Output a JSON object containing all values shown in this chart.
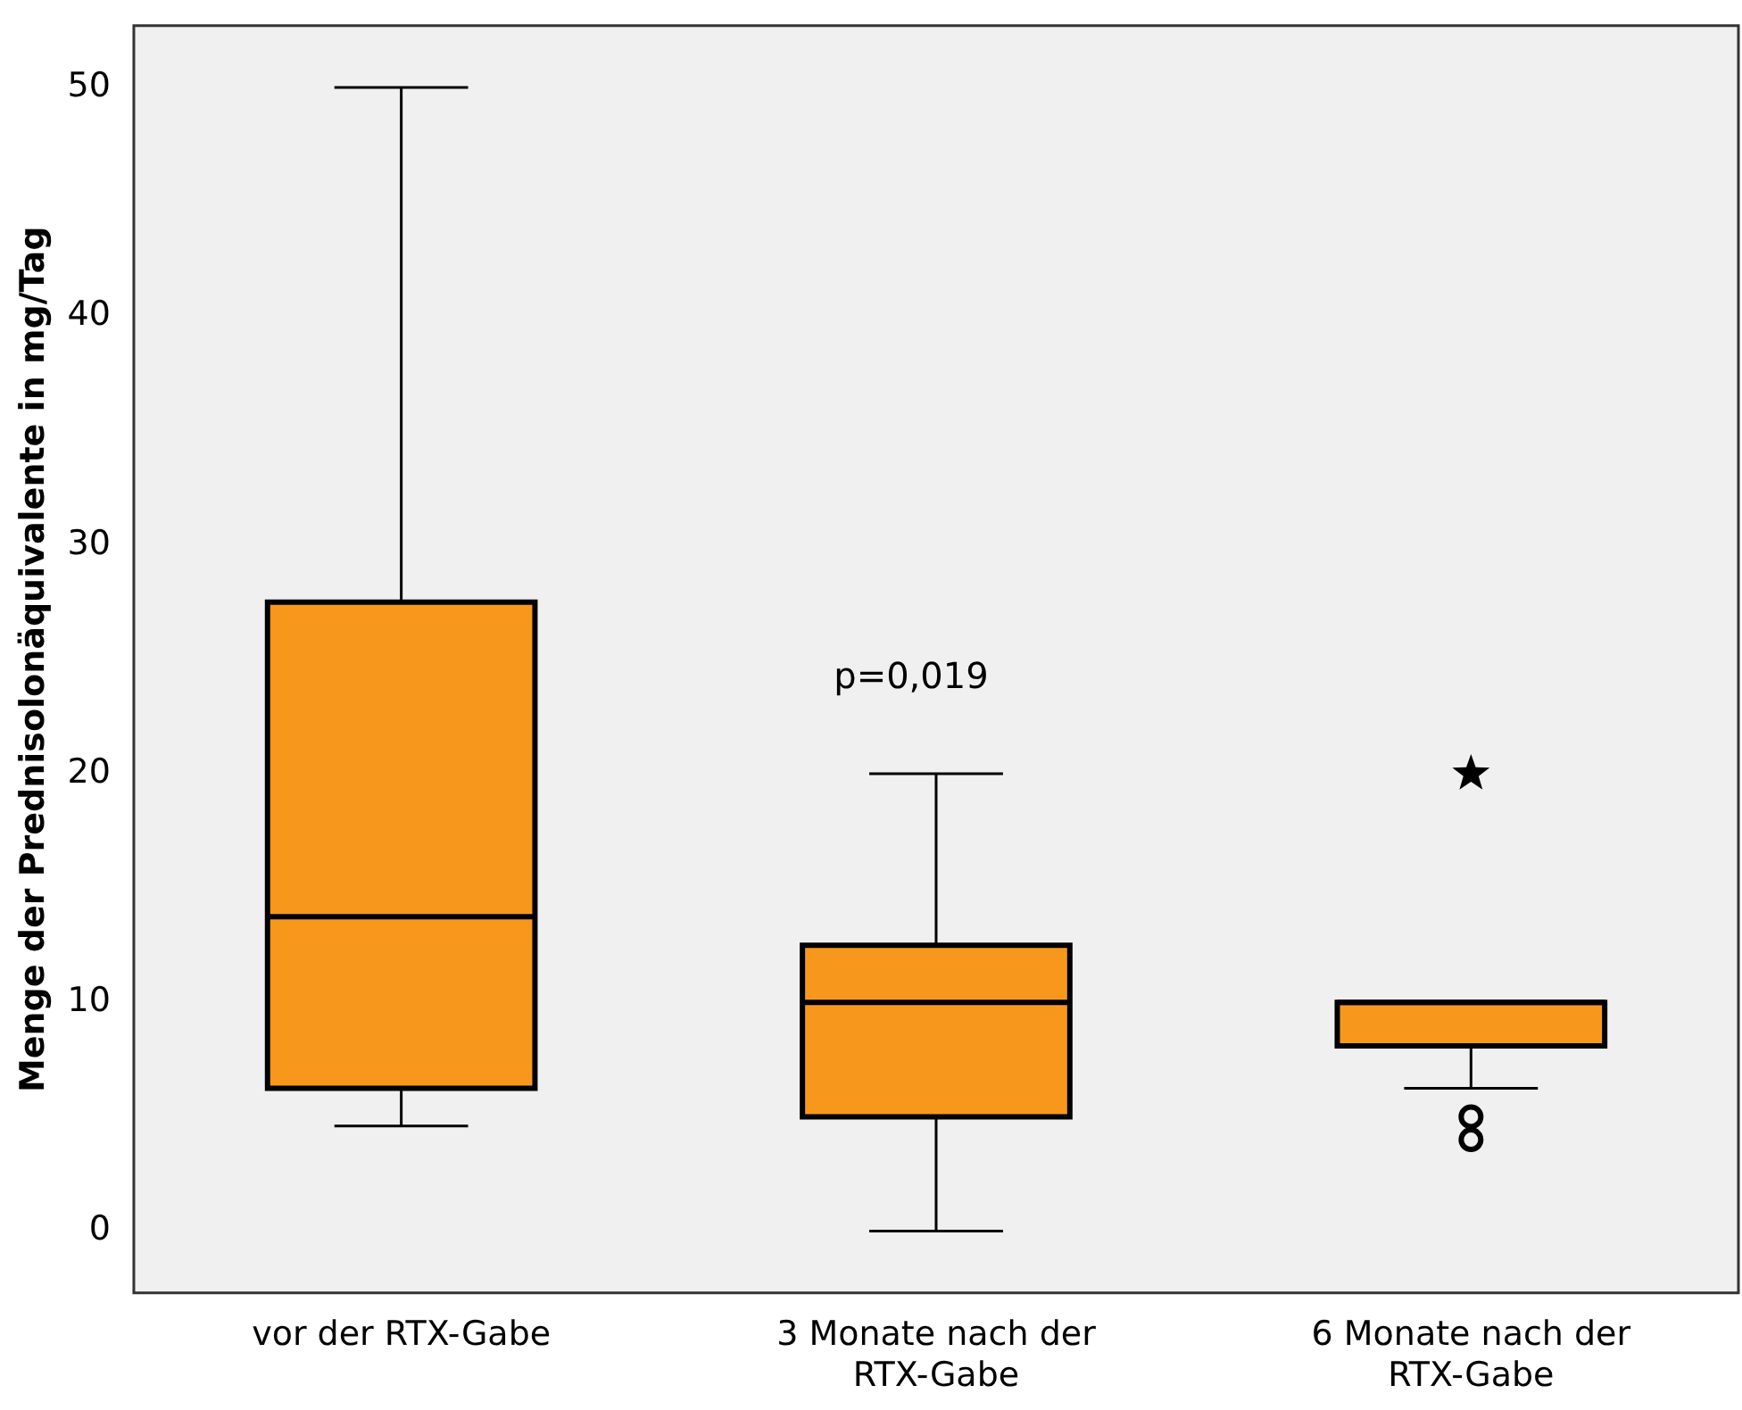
{
  "chart_data": {
    "type": "box",
    "ylabel": "Menge der Prednisolonäquivalente in mg/Tag",
    "categories": [
      "vor der RTX-Gabe",
      "3 Monate nach der RTX-Gabe",
      "6 Monate nach der RTX-Gabe"
    ],
    "boxes": [
      {
        "low": 4.6,
        "q1": 6.25,
        "median": 13.75,
        "q3": 27.5,
        "high": 50
      },
      {
        "low": 0,
        "q1": 5,
        "median": 10,
        "q3": 12.5,
        "high": 20
      },
      {
        "low": 6.25,
        "q1": 8.1,
        "median": 10,
        "q3": 10,
        "high": 10,
        "outliers": [
          5,
          4
        ]
      }
    ],
    "series": [
      {
        "type": "scatter",
        "marker": "star",
        "color": "#000000",
        "x": [
          "6 Monate nach der RTX-Gabe"
        ],
        "values": [
          20
        ]
      }
    ],
    "color": "#f7981d",
    "ylim": [
      -2.7,
      52.7
    ],
    "yticks": [
      0,
      10,
      20,
      30,
      40,
      50
    ],
    "annotations": [
      "p=0,019"
    ],
    "grid": false,
    "legend": false
  }
}
